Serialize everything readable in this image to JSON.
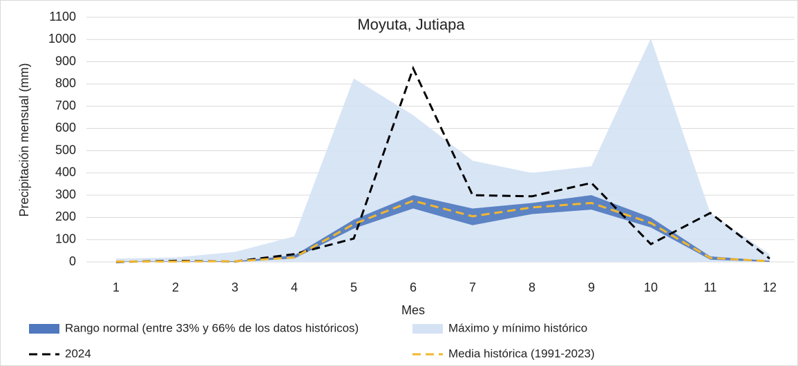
{
  "chart_data": {
    "type": "line",
    "title": "Moyuta, Jutiapa",
    "y_label": "Precipitación mensual (mm)",
    "x_label": "Mes",
    "categories": [
      "1",
      "2",
      "3",
      "4",
      "5",
      "6",
      "7",
      "8",
      "9",
      "10",
      "11",
      "12"
    ],
    "ylim": [
      0,
      1100
    ],
    "yticks": [
      0,
      100,
      200,
      300,
      400,
      500,
      600,
      700,
      800,
      900,
      1000,
      1100
    ],
    "grid": true,
    "series": [
      {
        "name": "Rango normal (entre 33% y 66% de los datos históricos)",
        "type": "band",
        "color": "#4f78be",
        "low": [
          0,
          0,
          0,
          15,
          150,
          240,
          165,
          215,
          235,
          155,
          10,
          0
        ],
        "high": [
          2,
          2,
          3,
          30,
          190,
          300,
          240,
          265,
          300,
          200,
          25,
          5
        ]
      },
      {
        "name": "Máximo y mínimo histórico",
        "type": "band",
        "color": "#d4e2f4",
        "low": [
          0,
          0,
          0,
          0,
          0,
          0,
          0,
          0,
          0,
          0,
          0,
          0
        ],
        "high": [
          15,
          20,
          45,
          115,
          825,
          660,
          455,
          400,
          430,
          1005,
          220,
          35
        ]
      },
      {
        "name": "2024",
        "type": "line",
        "color": "#000000",
        "values": [
          0,
          5,
          2,
          35,
          105,
          870,
          300,
          295,
          355,
          80,
          220,
          15
        ]
      },
      {
        "name": "Media histórica (1991-2023)",
        "type": "line",
        "color": "#f2b72e",
        "values": [
          2,
          2,
          3,
          20,
          170,
          275,
          205,
          245,
          265,
          175,
          18,
          3
        ]
      }
    ]
  }
}
